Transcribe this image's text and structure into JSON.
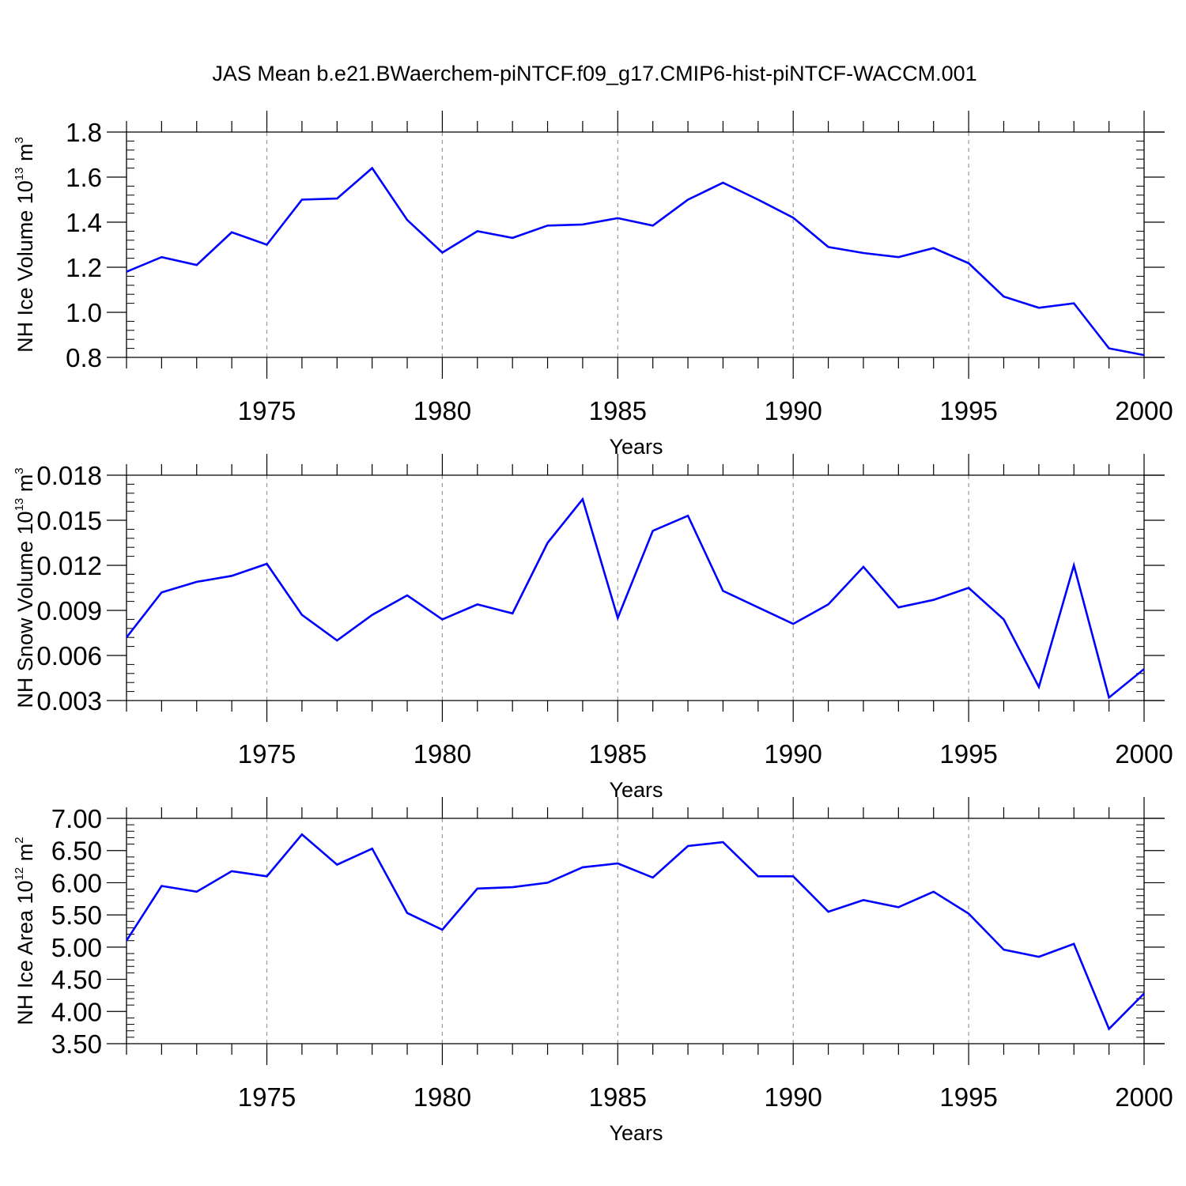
{
  "title": "JAS Mean b.e21.BWaerchem-piNTCF.f09_g17.CMIP6-hist-piNTCF-WACCM.001",
  "colors": {
    "line": "#0000ff",
    "axes": "#000000",
    "grid": "#999999"
  },
  "chart_data": [
    {
      "type": "line",
      "ylabel": {
        "text": "NH Ice Volume 10",
        "sup": "13",
        "unit": " m",
        "unit_sup": "3"
      },
      "xlabel": "Years",
      "xlim": [
        1971,
        2000
      ],
      "ylim": [
        0.8,
        1.8
      ],
      "x_ticks": [
        "1975",
        "1980",
        "1985",
        "1990",
        "1995",
        "2000"
      ],
      "y_ticks": [
        "0.8",
        "1.0",
        "1.2",
        "1.4",
        "1.6",
        "1.8"
      ],
      "grid": "vertical dashed at major x ticks",
      "x": [
        1971,
        1972,
        1973,
        1974,
        1975,
        1976,
        1977,
        1978,
        1979,
        1980,
        1981,
        1982,
        1983,
        1984,
        1985,
        1986,
        1987,
        1988,
        1989,
        1990,
        1991,
        1992,
        1993,
        1994,
        1995,
        1996,
        1997,
        1998,
        1999,
        2000
      ],
      "values": [
        1.18,
        1.245,
        1.21,
        1.355,
        1.3,
        1.5,
        1.505,
        1.64,
        1.41,
        1.265,
        1.36,
        1.33,
        1.385,
        1.39,
        1.418,
        1.385,
        1.5,
        1.575,
        1.5,
        1.42,
        1.29,
        1.263,
        1.245,
        1.285,
        1.218,
        1.07,
        1.02,
        1.04,
        0.84,
        0.81
      ]
    },
    {
      "type": "line",
      "ylabel": {
        "text": "NH Snow Volume 10",
        "sup": "13",
        "unit": " m",
        "unit_sup": "3"
      },
      "xlabel": "Years",
      "xlim": [
        1971,
        2000
      ],
      "ylim": [
        0.003,
        0.018
      ],
      "x_ticks": [
        "1975",
        "1980",
        "1985",
        "1990",
        "1995",
        "2000"
      ],
      "y_ticks": [
        "0.003",
        "0.006",
        "0.009",
        "0.012",
        "0.015",
        "0.018"
      ],
      "grid": "vertical dashed at major x ticks",
      "x": [
        1971,
        1972,
        1973,
        1974,
        1975,
        1976,
        1977,
        1978,
        1979,
        1980,
        1981,
        1982,
        1983,
        1984,
        1985,
        1986,
        1987,
        1988,
        1989,
        1990,
        1991,
        1992,
        1993,
        1994,
        1995,
        1996,
        1997,
        1998,
        1999,
        2000
      ],
      "values": [
        0.0072,
        0.0102,
        0.0109,
        0.0113,
        0.0121,
        0.0087,
        0.007,
        0.0087,
        0.01,
        0.0084,
        0.0094,
        0.0088,
        0.0135,
        0.0164,
        0.0085,
        0.0143,
        0.0153,
        0.0103,
        0.0092,
        0.0081,
        0.0094,
        0.0119,
        0.0092,
        0.0097,
        0.0105,
        0.0084,
        0.0039,
        0.012,
        0.0032,
        0.0051
      ]
    },
    {
      "type": "line",
      "ylabel": {
        "text": "NH Ice Area 10",
        "sup": "12",
        "unit": " m",
        "unit_sup": "2"
      },
      "xlabel": "Years",
      "xlim": [
        1971,
        2000
      ],
      "ylim": [
        3.5,
        7.0
      ],
      "x_ticks": [
        "1975",
        "1980",
        "1985",
        "1990",
        "1995",
        "2000"
      ],
      "y_ticks": [
        "3.50",
        "4.00",
        "4.50",
        "5.00",
        "5.50",
        "6.00",
        "6.50",
        "7.00"
      ],
      "grid": "vertical dashed at major x ticks",
      "x": [
        1971,
        1972,
        1973,
        1974,
        1975,
        1976,
        1977,
        1978,
        1979,
        1980,
        1981,
        1982,
        1983,
        1984,
        1985,
        1986,
        1987,
        1988,
        1989,
        1990,
        1991,
        1992,
        1993,
        1994,
        1995,
        1996,
        1997,
        1998,
        1999,
        2000
      ],
      "values": [
        5.1,
        5.95,
        5.86,
        6.18,
        6.1,
        6.75,
        6.28,
        6.53,
        5.53,
        5.27,
        5.91,
        5.93,
        6.0,
        6.24,
        6.3,
        6.08,
        6.57,
        6.63,
        6.1,
        6.1,
        5.55,
        5.73,
        5.62,
        5.86,
        5.52,
        4.96,
        4.85,
        5.05,
        3.73,
        4.28
      ]
    }
  ]
}
